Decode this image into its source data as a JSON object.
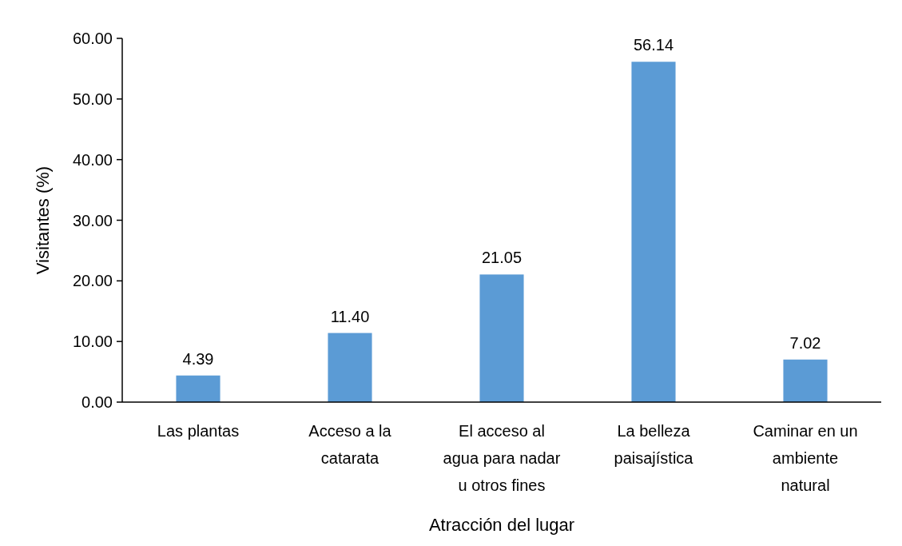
{
  "chart_data": {
    "type": "bar",
    "xlabel": "Atracción del lugar",
    "ylabel": "Visitantes (%)",
    "categories": [
      "Las plantas",
      "Acceso a la catarata",
      "El acceso al agua para nadar u otros fines",
      "La belleza paisajística",
      "Caminar en un ambiente natural"
    ],
    "values": [
      4.39,
      11.4,
      21.05,
      56.14,
      7.02
    ],
    "value_labels": [
      "4.39",
      "11.40",
      "21.05",
      "56.14",
      "7.02"
    ],
    "color": "#5b9bd5",
    "ylim": [
      0,
      60
    ],
    "yticks": [
      {
        "value": 0,
        "label": "0.00"
      },
      {
        "value": 10,
        "label": "10.00"
      },
      {
        "value": 20,
        "label": "20.00"
      },
      {
        "value": 30,
        "label": "30.00"
      },
      {
        "value": 40,
        "label": "40.00"
      },
      {
        "value": 50,
        "label": "50.00"
      },
      {
        "value": 60,
        "label": "60.00"
      }
    ],
    "grid": false
  }
}
